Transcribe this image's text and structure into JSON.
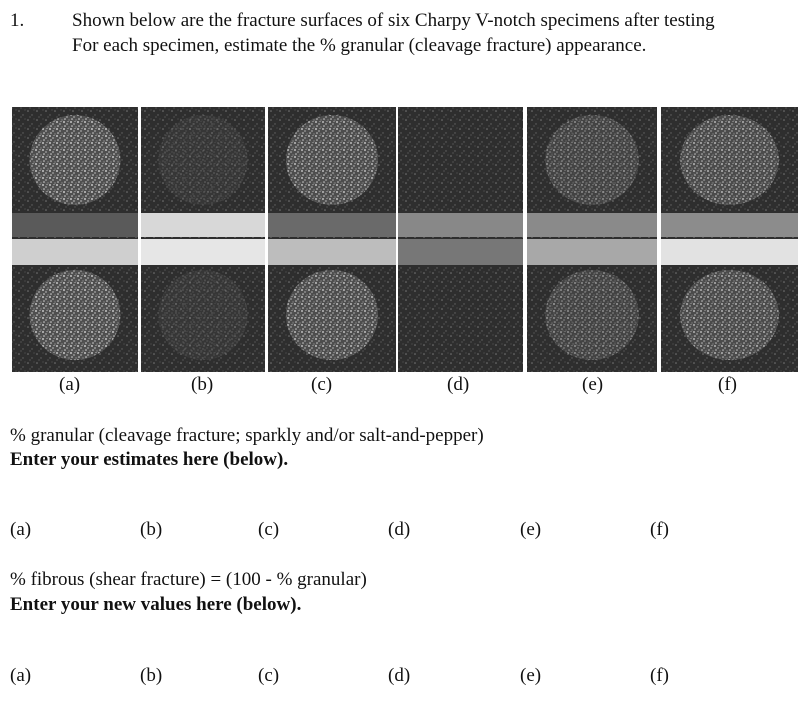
{
  "question": {
    "number": "1.",
    "lines": [
      "Shown below are the fracture surfaces of six Charpy V-notch specimens after testing",
      "For each specimen, estimate the % granular (cleavage fracture) appearance."
    ]
  },
  "specimens": {
    "labels": [
      "(a)",
      "(b)",
      "(c)",
      "(d)",
      "(e)",
      "(f)"
    ]
  },
  "granular": {
    "heading": "% granular (cleavage fracture; sparkly and/or salt-and-pepper)",
    "instruction": "Enter your estimates here (below).",
    "labels": [
      "(a)",
      "(b)",
      "(c)",
      "(d)",
      "(e)",
      "(f)"
    ]
  },
  "fibrous": {
    "heading": "% fibrous (shear fracture) = (100 - % granular)",
    "instruction": "Enter your new values here (below).",
    "labels": [
      "(a)",
      "(b)",
      "(c)",
      "(d)",
      "(e)",
      "(f)"
    ]
  }
}
